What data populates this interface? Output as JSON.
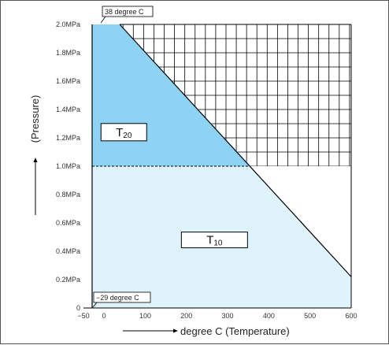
{
  "chart_data": {
    "type": "area",
    "xlabel": "degree C (Temperature)",
    "ylabel": "(Pressure)",
    "x_ticks": [
      -50,
      0,
      100,
      200,
      300,
      400,
      500,
      600
    ],
    "x_tick_labels": [
      "−50",
      "0",
      "100",
      "200",
      "300",
      "400",
      "500",
      "600"
    ],
    "y_ticks": [
      0,
      0.2,
      0.4,
      0.6,
      0.8,
      1.0,
      1.2,
      1.4,
      1.6,
      1.8,
      2.0
    ],
    "y_tick_labels": [
      "0",
      "0.2MPa",
      "0.4MPa",
      "0.6MPa",
      "0.8MPa",
      "1.0MPa",
      "1.2MPa",
      "1.4MPa",
      "1.6MPa",
      "1.8MPa",
      "2.0MPa"
    ],
    "xlim": [
      -50,
      600
    ],
    "ylim": [
      0,
      2.0
    ],
    "grid": true,
    "grid_x_step": 25,
    "grid_y_step": 0.1,
    "grid_region_note": "grid visible only above T10 region and outside T20 region",
    "limit_line": [
      [
        38,
        2.0
      ],
      [
        600,
        0.22
      ]
    ],
    "regions": [
      {
        "name": "T20",
        "label_main": "T",
        "label_sub": "20",
        "color": "#8fd3f4",
        "polygon": [
          [
            -29,
            1.0
          ],
          [
            -29,
            2.0
          ],
          [
            38,
            2.0
          ],
          [
            356,
            1.0
          ]
        ],
        "label_at": [
          48,
          1.24
        ]
      },
      {
        "name": "T10",
        "label_main": "T",
        "label_sub": "10",
        "color": "#dff3fd",
        "polygon": [
          [
            -29,
            0
          ],
          [
            -29,
            1.0
          ],
          [
            356,
            1.0
          ],
          [
            600,
            0.22
          ],
          [
            600,
            0
          ]
        ],
        "label_at": [
          268,
          0.48
        ]
      }
    ],
    "boundary_line_dashed": {
      "y": 1.0,
      "x": [
        -29,
        356
      ]
    },
    "annotations": [
      {
        "text": "38 degree C",
        "point": [
          38,
          2.0
        ]
      },
      {
        "text": "−29 degree C",
        "point": [
          -29,
          0
        ]
      }
    ],
    "legend": "none"
  },
  "colors": {
    "frame": "#555555",
    "axis": "#000000",
    "grid": "#000000",
    "t20_fill": "#8fd3f4",
    "t10_fill": "#dff3fd"
  }
}
